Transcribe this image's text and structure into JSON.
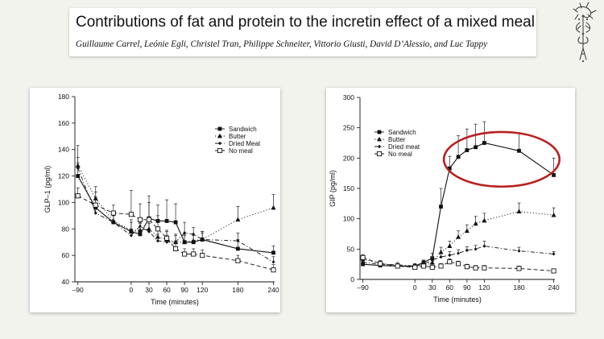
{
  "header": {
    "title": "Contributions of fat and protein to the incretin effect of a mixed meal",
    "authors": "Guillaume Carrel, Leónie Egli, Christel Tran, Philippe Schneiter, Vittorio Giusti, David D’Alessio, and Luc Tappy"
  },
  "logo": {
    "icon": "university-seal-icon"
  },
  "chart_data": [
    {
      "type": "line",
      "xlabel": "Time (minutes)",
      "ylabel": "GLP–1 (pg/ml)",
      "xlim": [
        -95,
        242
      ],
      "ylim": [
        40,
        180
      ],
      "x_ticks": [
        -90,
        0,
        30,
        60,
        90,
        120,
        180,
        240
      ],
      "x_tick_labels": [
        "–90",
        "0",
        "30",
        "60",
        "90",
        "120",
        "180",
        "240"
      ],
      "y_ticks": [
        40,
        60,
        80,
        100,
        120,
        140,
        160,
        180
      ],
      "legend_position": "top-right",
      "grid": false,
      "series": [
        {
          "name": "Sandwich",
          "marker": "square-filled",
          "line": "solid",
          "x": [
            -90,
            -60,
            -30,
            0,
            15,
            30,
            45,
            60,
            75,
            90,
            105,
            120,
            180,
            240
          ],
          "y": [
            120,
            96,
            85,
            78,
            76,
            88,
            86,
            86,
            85,
            70,
            70,
            72,
            65,
            62
          ],
          "err": [
            10,
            8,
            6,
            9,
            8,
            12,
            12,
            16,
            14,
            6,
            5,
            6,
            7,
            5
          ]
        },
        {
          "name": "Butter",
          "marker": "triangle-filled",
          "line": "dotted",
          "x": [
            -90,
            -60,
            -30,
            0,
            15,
            30,
            45,
            60,
            75,
            90,
            105,
            120,
            180,
            240
          ],
          "y": [
            128,
            103,
            86,
            79,
            79,
            80,
            74,
            72,
            70,
            70,
            71,
            72,
            87,
            96
          ],
          "err": [
            15,
            9,
            7,
            6,
            6,
            8,
            6,
            6,
            6,
            5,
            5,
            6,
            10,
            10
          ]
        },
        {
          "name": "Dried Meat",
          "marker": "diamond-small",
          "line": "dashdot",
          "x": [
            -90,
            -60,
            -30,
            0,
            15,
            30,
            45,
            60,
            75,
            90,
            105,
            120,
            180,
            240
          ],
          "y": [
            126,
            92,
            85,
            75,
            82,
            78,
            71,
            70,
            70,
            77,
            76,
            72,
            71,
            55
          ],
          "err": [
            8,
            6,
            5,
            5,
            5,
            6,
            5,
            5,
            5,
            8,
            5,
            5,
            6,
            4
          ]
        },
        {
          "name": "No meal",
          "marker": "square-open",
          "line": "dashed",
          "x": [
            -90,
            -60,
            -30,
            0,
            15,
            30,
            45,
            60,
            75,
            90,
            105,
            120,
            180,
            240
          ],
          "y": [
            105,
            98,
            92,
            91,
            87,
            87,
            80,
            73,
            65,
            61,
            61,
            60,
            56,
            49
          ],
          "err": [
            6,
            10,
            6,
            18,
            12,
            18,
            10,
            6,
            6,
            4,
            4,
            4,
            4,
            4
          ]
        }
      ]
    },
    {
      "type": "line",
      "xlabel": "Time (minutes)",
      "ylabel": "GIP (pg/ml)",
      "xlim": [
        -95,
        242
      ],
      "ylim": [
        0,
        300
      ],
      "x_ticks": [
        -90,
        0,
        30,
        60,
        90,
        120,
        180,
        240
      ],
      "x_tick_labels": [
        "–90",
        "0",
        "30",
        "60",
        "90",
        "120",
        "180",
        "240"
      ],
      "y_ticks": [
        0,
        50,
        100,
        150,
        200,
        250,
        300
      ],
      "legend_position": "top-left",
      "grid": false,
      "annotation": {
        "shape": "ellipse",
        "color": "#b8211f",
        "x_center": 150,
        "y_center": 198,
        "x_radius": 100,
        "y_radius": 45
      },
      "series": [
        {
          "name": "Sandwich",
          "marker": "square-filled",
          "line": "solid",
          "x": [
            -90,
            -60,
            -30,
            0,
            15,
            30,
            45,
            60,
            75,
            90,
            105,
            120,
            180,
            240
          ],
          "y": [
            25,
            23,
            22,
            22,
            28,
            35,
            120,
            183,
            202,
            213,
            218,
            225,
            212,
            172
          ],
          "err": [
            4,
            4,
            4,
            4,
            4,
            8,
            30,
            20,
            35,
            35,
            38,
            35,
            30,
            28
          ]
        },
        {
          "name": "Butter",
          "marker": "triangle-filled",
          "line": "dotted",
          "x": [
            -90,
            -60,
            -30,
            0,
            15,
            30,
            45,
            60,
            75,
            90,
            105,
            120,
            180,
            240
          ],
          "y": [
            33,
            27,
            22,
            20,
            22,
            28,
            45,
            55,
            70,
            80,
            92,
            97,
            112,
            106
          ],
          "err": [
            4,
            4,
            4,
            4,
            4,
            6,
            8,
            8,
            10,
            10,
            12,
            12,
            14,
            12
          ]
        },
        {
          "name": "Dried meat",
          "marker": "diamond-small",
          "line": "dashdot",
          "x": [
            -90,
            -60,
            -30,
            0,
            15,
            30,
            45,
            60,
            75,
            90,
            105,
            120,
            180,
            240
          ],
          "y": [
            28,
            25,
            24,
            22,
            25,
            32,
            37,
            40,
            43,
            48,
            50,
            55,
            47,
            42
          ],
          "err": [
            4,
            4,
            4,
            4,
            4,
            5,
            6,
            6,
            6,
            6,
            6,
            8,
            6,
            4
          ]
        },
        {
          "name": "No meal",
          "marker": "square-open",
          "line": "dashed",
          "x": [
            -90,
            -60,
            -30,
            0,
            15,
            30,
            45,
            60,
            75,
            90,
            105,
            120,
            180,
            240
          ],
          "y": [
            36,
            26,
            22,
            20,
            22,
            20,
            22,
            29,
            26,
            21,
            19,
            19,
            18,
            14
          ],
          "err": [
            5,
            4,
            4,
            4,
            4,
            4,
            4,
            5,
            4,
            4,
            4,
            4,
            4,
            3
          ]
        }
      ]
    }
  ]
}
